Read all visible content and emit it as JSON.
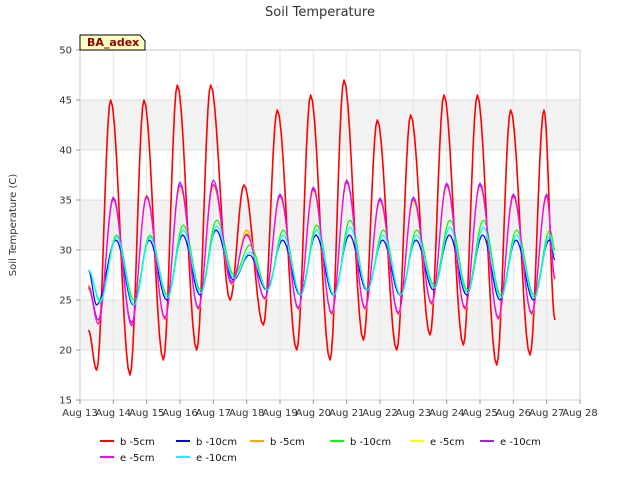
{
  "chart_data": {
    "type": "line",
    "title": "Soil Temperature",
    "ylabel": "Soil Temperature (C)",
    "xlabel": "",
    "badge": "BA_adex",
    "xlim": [
      13,
      28
    ],
    "ylim": [
      15,
      50
    ],
    "xticks": [
      13,
      14,
      15,
      16,
      17,
      18,
      19,
      20,
      21,
      22,
      23,
      24,
      25,
      26,
      27,
      28
    ],
    "xtick_labels": [
      "Aug 13",
      "Aug 14",
      "Aug 15",
      "Aug 16",
      "Aug 17",
      "Aug 18",
      "Aug 19",
      "Aug 20",
      "Aug 21",
      "Aug 22",
      "Aug 23",
      "Aug 24",
      "Aug 25",
      "Aug 26",
      "Aug 27",
      "Aug 28"
    ],
    "yticks": [
      15,
      20,
      25,
      30,
      35,
      40,
      45,
      50
    ],
    "grid": true,
    "legend_position": "bottom",
    "series": [
      {
        "name": "b -5cm",
        "color": "#ff0000",
        "width": 1.6,
        "points": [
          [
            13.25,
            22
          ],
          [
            13.5,
            18
          ],
          [
            13.92,
            45
          ],
          [
            14.5,
            17.5
          ],
          [
            14.92,
            45
          ],
          [
            15.5,
            19
          ],
          [
            15.92,
            46.5
          ],
          [
            16.5,
            20
          ],
          [
            16.92,
            46.5
          ],
          [
            17.5,
            25
          ],
          [
            17.92,
            36.5
          ],
          [
            18.5,
            22.5
          ],
          [
            18.92,
            44
          ],
          [
            19.5,
            20
          ],
          [
            19.92,
            45.5
          ],
          [
            20.5,
            19
          ],
          [
            20.92,
            47
          ],
          [
            21.5,
            21
          ],
          [
            21.92,
            43
          ],
          [
            22.5,
            20
          ],
          [
            22.92,
            43.5
          ],
          [
            23.5,
            21.5
          ],
          [
            23.92,
            45.5
          ],
          [
            24.5,
            20.5
          ],
          [
            24.92,
            45.5
          ],
          [
            25.5,
            18.5
          ],
          [
            25.92,
            44
          ],
          [
            26.5,
            19.5
          ],
          [
            26.92,
            44
          ],
          [
            27.25,
            23
          ]
        ]
      },
      {
        "name": "b -10cm",
        "color": "#0000ff",
        "width": 1.2,
        "points": [
          [
            13.25,
            28
          ],
          [
            13.5,
            24.5
          ],
          [
            14.08,
            31
          ],
          [
            14.6,
            24.5
          ],
          [
            15.08,
            31
          ],
          [
            15.6,
            25
          ],
          [
            16.08,
            31.5
          ],
          [
            16.6,
            25.5
          ],
          [
            17.08,
            32
          ],
          [
            17.6,
            27
          ],
          [
            18.08,
            29.5
          ],
          [
            18.6,
            26
          ],
          [
            19.08,
            31
          ],
          [
            19.6,
            25.5
          ],
          [
            20.08,
            31.5
          ],
          [
            20.6,
            25.5
          ],
          [
            21.08,
            31.5
          ],
          [
            21.6,
            26
          ],
          [
            22.08,
            31
          ],
          [
            22.6,
            25.5
          ],
          [
            23.08,
            31
          ],
          [
            23.6,
            26
          ],
          [
            24.08,
            31.5
          ],
          [
            24.6,
            25.5
          ],
          [
            25.08,
            31.5
          ],
          [
            25.6,
            25
          ],
          [
            26.08,
            31
          ],
          [
            26.6,
            25
          ],
          [
            27.08,
            31
          ],
          [
            27.25,
            29
          ]
        ]
      },
      {
        "name": "b -5cm",
        "color": "#ffa500",
        "width": 1.2,
        "points": [
          [
            13.25,
            26.5
          ],
          [
            13.55,
            23
          ],
          [
            14,
            35
          ],
          [
            14.55,
            22.5
          ],
          [
            15,
            35.5
          ],
          [
            15.55,
            23
          ],
          [
            16,
            36.5
          ],
          [
            16.55,
            24
          ],
          [
            17,
            36.5
          ],
          [
            17.55,
            26.5
          ],
          [
            18,
            32
          ],
          [
            18.55,
            25
          ],
          [
            19,
            35.5
          ],
          [
            19.55,
            24
          ],
          [
            20,
            36
          ],
          [
            20.55,
            23.5
          ],
          [
            21,
            37
          ],
          [
            21.55,
            24
          ],
          [
            22,
            35
          ],
          [
            22.55,
            23.5
          ],
          [
            23,
            35
          ],
          [
            23.55,
            24.5
          ],
          [
            24,
            36.5
          ],
          [
            24.55,
            24
          ],
          [
            25,
            36.5
          ],
          [
            25.55,
            23
          ],
          [
            26,
            35.5
          ],
          [
            26.55,
            23.5
          ],
          [
            27,
            35.5
          ],
          [
            27.25,
            27
          ]
        ]
      },
      {
        "name": "b -10cm",
        "color": "#00ff00",
        "width": 1.2,
        "points": [
          [
            13.25,
            28
          ],
          [
            13.6,
            25
          ],
          [
            14.1,
            31.5
          ],
          [
            14.62,
            25
          ],
          [
            15.1,
            31.5
          ],
          [
            15.62,
            25.5
          ],
          [
            16.1,
            32.5
          ],
          [
            16.62,
            26
          ],
          [
            17.1,
            33
          ],
          [
            17.62,
            27.5
          ],
          [
            18.1,
            30.5
          ],
          [
            18.62,
            26
          ],
          [
            19.1,
            32
          ],
          [
            19.62,
            25.5
          ],
          [
            20.1,
            32.5
          ],
          [
            20.62,
            25.5
          ],
          [
            21.1,
            33
          ],
          [
            21.62,
            26
          ],
          [
            22.1,
            32
          ],
          [
            22.62,
            25.5
          ],
          [
            23.1,
            32
          ],
          [
            23.62,
            26.5
          ],
          [
            24.1,
            33
          ],
          [
            24.62,
            26
          ],
          [
            25.1,
            33
          ],
          [
            25.62,
            25.5
          ],
          [
            26.1,
            32
          ],
          [
            26.62,
            25.5
          ],
          [
            27.1,
            32
          ],
          [
            27.25,
            30
          ]
        ]
      },
      {
        "name": "e -5cm",
        "color": "#ffff00",
        "width": 1.2,
        "points": [
          [
            13.25,
            26
          ],
          [
            13.55,
            22.8
          ],
          [
            14,
            35
          ],
          [
            14.55,
            22.5
          ],
          [
            15,
            35.2
          ],
          [
            15.55,
            23
          ],
          [
            16,
            36.2
          ],
          [
            16.55,
            24
          ],
          [
            17,
            36.3
          ],
          [
            17.55,
            26.5
          ],
          [
            18,
            31.8
          ],
          [
            18.55,
            25
          ],
          [
            19,
            35.2
          ],
          [
            19.55,
            24
          ],
          [
            20,
            35.8
          ],
          [
            20.55,
            23.5
          ],
          [
            21,
            36.7
          ],
          [
            21.55,
            24
          ],
          [
            22,
            34.8
          ],
          [
            22.55,
            23.5
          ],
          [
            23,
            34.8
          ],
          [
            23.55,
            24.5
          ],
          [
            24,
            36.3
          ],
          [
            24.55,
            24
          ],
          [
            25,
            36.3
          ],
          [
            25.55,
            23
          ],
          [
            26,
            35.2
          ],
          [
            26.55,
            23.5
          ],
          [
            27,
            35.2
          ],
          [
            27.25,
            27
          ]
        ]
      },
      {
        "name": "e -10cm",
        "color": "#a020f0",
        "width": 1.2,
        "points": [
          [
            13.25,
            26.3
          ],
          [
            13.55,
            23
          ],
          [
            14,
            35.3
          ],
          [
            14.55,
            22.7
          ],
          [
            15,
            35.4
          ],
          [
            15.55,
            23.2
          ],
          [
            16,
            36.8
          ],
          [
            16.55,
            24.2
          ],
          [
            17,
            37
          ],
          [
            17.55,
            26.8
          ],
          [
            18,
            31.5
          ],
          [
            18.55,
            25.2
          ],
          [
            19,
            35.6
          ],
          [
            19.55,
            24.2
          ],
          [
            20,
            36.3
          ],
          [
            20.55,
            23.7
          ],
          [
            21,
            37
          ],
          [
            21.55,
            24.2
          ],
          [
            22,
            35.2
          ],
          [
            22.55,
            23.7
          ],
          [
            23,
            35.3
          ],
          [
            23.55,
            24.7
          ],
          [
            24,
            36.7
          ],
          [
            24.55,
            24.2
          ],
          [
            25,
            36.7
          ],
          [
            25.55,
            23.2
          ],
          [
            26,
            35.6
          ],
          [
            26.55,
            23.7
          ],
          [
            27,
            35.6
          ],
          [
            27.25,
            27.2
          ]
        ]
      },
      {
        "name": "e -5cm",
        "color": "#ff00ff",
        "width": 1.2,
        "points": [
          [
            13.25,
            26.2
          ],
          [
            13.55,
            22.6
          ],
          [
            14,
            35.1
          ],
          [
            14.55,
            22.4
          ],
          [
            15,
            35.3
          ],
          [
            15.55,
            23.1
          ],
          [
            16,
            36.5
          ],
          [
            16.55,
            24.1
          ],
          [
            17,
            36.6
          ],
          [
            17.55,
            26.6
          ],
          [
            18,
            31.6
          ],
          [
            18.55,
            25.1
          ],
          [
            19,
            35.4
          ],
          [
            19.55,
            24.1
          ],
          [
            20,
            36.1
          ],
          [
            20.55,
            23.6
          ],
          [
            21,
            36.8
          ],
          [
            21.55,
            24.1
          ],
          [
            22,
            35
          ],
          [
            22.55,
            23.6
          ],
          [
            23,
            35.1
          ],
          [
            23.55,
            24.6
          ],
          [
            24,
            36.5
          ],
          [
            24.55,
            24.1
          ],
          [
            25,
            36.5
          ],
          [
            25.55,
            23.1
          ],
          [
            26,
            35.4
          ],
          [
            26.55,
            23.6
          ],
          [
            27,
            35.4
          ],
          [
            27.25,
            27.1
          ]
        ]
      },
      {
        "name": "e -10cm",
        "color": "#00ffff",
        "width": 1.2,
        "points": [
          [
            13.25,
            28
          ],
          [
            13.6,
            24.8
          ],
          [
            14.1,
            31.3
          ],
          [
            14.62,
            24.5
          ],
          [
            15.1,
            31.3
          ],
          [
            15.62,
            25.2
          ],
          [
            16.1,
            32
          ],
          [
            16.62,
            25.7
          ],
          [
            17.1,
            32.4
          ],
          [
            17.62,
            27.2
          ],
          [
            18.1,
            29.8
          ],
          [
            18.62,
            26
          ],
          [
            19.1,
            31.5
          ],
          [
            19.62,
            25.5
          ],
          [
            20.1,
            32
          ],
          [
            20.62,
            25.5
          ],
          [
            21.1,
            32.3
          ],
          [
            21.62,
            26
          ],
          [
            22.1,
            31.5
          ],
          [
            22.62,
            25.5
          ],
          [
            23.1,
            31.5
          ],
          [
            23.62,
            26.2
          ],
          [
            24.1,
            32.3
          ],
          [
            24.62,
            25.7
          ],
          [
            25.1,
            32.3
          ],
          [
            25.62,
            25.2
          ],
          [
            26.1,
            31.5
          ],
          [
            26.62,
            25.2
          ],
          [
            27.1,
            31.5
          ],
          [
            27.25,
            29.5
          ]
        ]
      }
    ]
  }
}
